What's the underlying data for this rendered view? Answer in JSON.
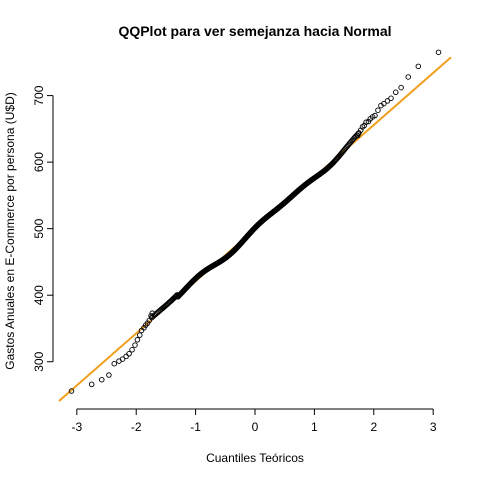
{
  "chart_data": {
    "type": "scatter",
    "title": "QQPlot para ver semejanza hacia Normal",
    "xlabel": "Cuantiles Teóricos",
    "ylabel": "Gastos Anuales en E-Commerce por persona (U$D)",
    "xlim": [
      -3.3,
      3.3
    ],
    "ylim": [
      238,
      755
    ],
    "x_ticks": [
      -3,
      -2,
      -1,
      0,
      1,
      2,
      3
    ],
    "y_ticks": [
      300,
      400,
      500,
      600,
      700
    ],
    "grid": false,
    "legend": "none",
    "colors": {
      "points": "#000000",
      "reference_line": "#f0a01e"
    },
    "reference_line": {
      "intercept": 499.3,
      "slope": 78.3
    },
    "points": {
      "n": 500,
      "x": [
        -3.09,
        -2.75,
        -2.58,
        -2.46,
        -2.37,
        -2.29,
        -2.23,
        -2.17,
        -2.12,
        -2.07,
        -2.02,
        -1.98,
        -1.94,
        -1.91,
        -1.87,
        -1.84,
        -1.81,
        -1.78,
        -1.75,
        -1.73,
        1.73,
        1.75,
        1.78,
        1.81,
        1.84,
        1.87,
        1.91,
        1.94,
        1.98,
        2.02,
        2.07,
        2.12,
        2.17,
        2.23,
        2.29,
        2.37,
        2.46,
        2.58,
        2.75,
        3.09
      ],
      "y": [
        256,
        266,
        273,
        280,
        297,
        301,
        304,
        308,
        312,
        318,
        325,
        333,
        340,
        347,
        351,
        355,
        358,
        362,
        369,
        373,
        640,
        644,
        648,
        653,
        655,
        660,
        661,
        665,
        668,
        670,
        678,
        685,
        688,
        692,
        696,
        705,
        712,
        728,
        744,
        765
      ]
    }
  }
}
